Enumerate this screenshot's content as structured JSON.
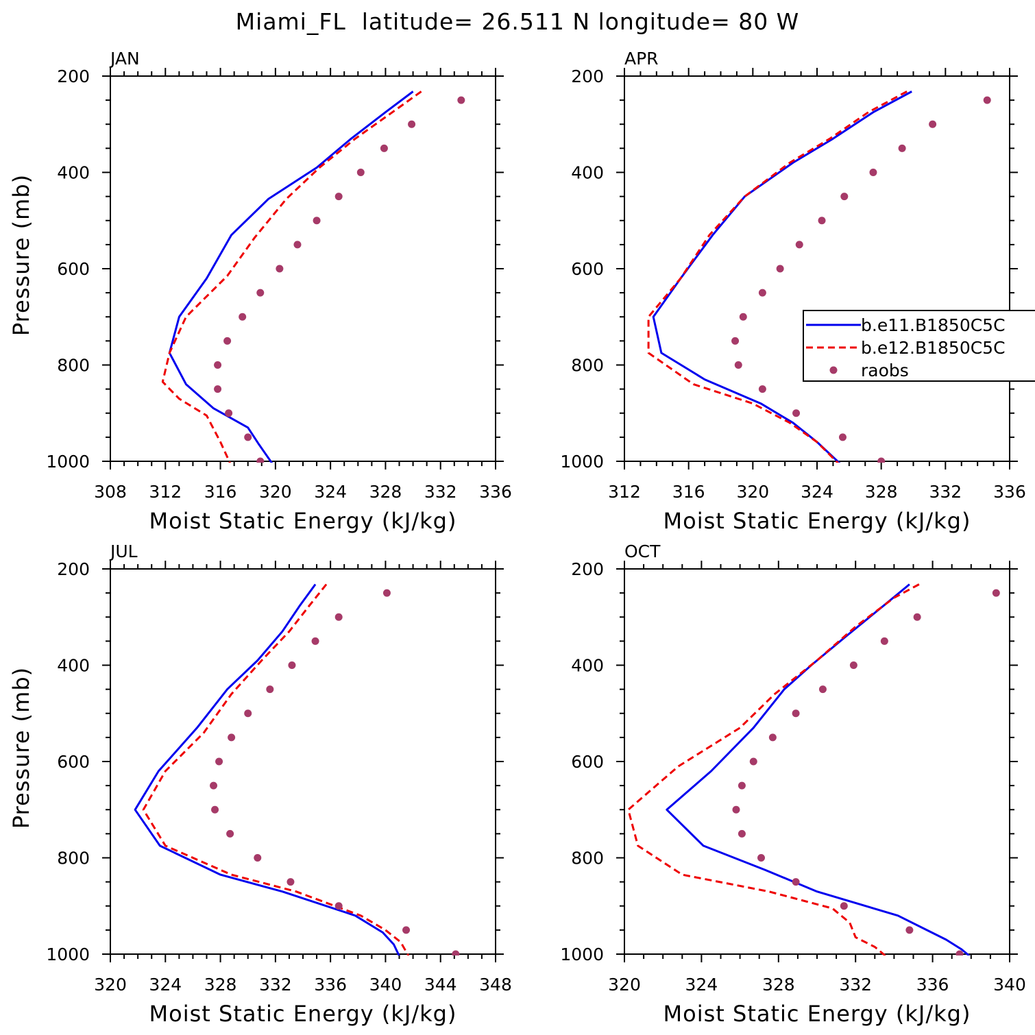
{
  "title": "Miami_FL  latitude= 26.511 N longitude= 80 W",
  "legend": {
    "entries": [
      {
        "label": "b.e11.B1850C5C",
        "style": "solid",
        "color": "#0000ee",
        "marker": "none"
      },
      {
        "label": "b.e12.B1850C5C",
        "style": "dashed",
        "color": "#ee0000",
        "marker": "none"
      },
      {
        "label": "raobs",
        "style": "none",
        "color": "#a63a68",
        "marker": "dot"
      }
    ]
  },
  "chart_data": [
    {
      "type": "line",
      "panel_label": "JAN",
      "xlabel": "Moist Static Energy (kJ/kg)",
      "ylabel": "Pressure (mb)",
      "xlim": [
        308,
        336
      ],
      "xticks": [
        308,
        312,
        316,
        320,
        324,
        328,
        332,
        336
      ],
      "ylim": [
        1000,
        200
      ],
      "yticks": [
        200,
        400,
        600,
        800,
        1000
      ],
      "series": [
        {
          "name": "b.e11.B1850C5C",
          "color": "#0000ee",
          "style": "solid",
          "x": [
            330.0,
            328.0,
            325.5,
            323.0,
            319.5,
            316.8,
            315.0,
            313.0,
            312.3,
            313.5,
            315.5,
            318.0,
            318.8,
            319.9
          ],
          "y": [
            232,
            275,
            330,
            390,
            455,
            530,
            620,
            700,
            775,
            840,
            890,
            930,
            965,
            1010
          ]
        },
        {
          "name": "b.e12.B1850C5C",
          "color": "#ee0000",
          "style": "dashed",
          "x": [
            330.6,
            328.5,
            325.8,
            323.2,
            320.8,
            318.5,
            316.5,
            313.5,
            312.3,
            311.8,
            313.0,
            315.0,
            316.0,
            316.8
          ],
          "y": [
            232,
            275,
            330,
            390,
            455,
            535,
            615,
            700,
            775,
            835,
            870,
            905,
            960,
            1010
          ]
        },
        {
          "name": "raobs",
          "color": "#a63a68",
          "style": "points",
          "x": [
            333.5,
            329.9,
            327.9,
            326.2,
            324.6,
            323.0,
            321.6,
            320.3,
            318.9,
            317.6,
            316.5,
            315.8,
            315.8,
            316.6,
            318.0,
            318.9
          ],
          "y": [
            250,
            300,
            350,
            400,
            450,
            500,
            550,
            600,
            650,
            700,
            750,
            800,
            850,
            900,
            950,
            1000
          ]
        }
      ]
    },
    {
      "type": "line",
      "panel_label": "APR",
      "xlabel": "Moist Static Energy (kJ/kg)",
      "ylabel": "",
      "xlim": [
        312,
        336
      ],
      "xticks": [
        312,
        316,
        320,
        324,
        328,
        332,
        336
      ],
      "ylim": [
        1000,
        200
      ],
      "yticks": [
        200,
        400,
        600,
        800,
        1000
      ],
      "series": [
        {
          "name": "b.e11.B1850C5C",
          "color": "#0000ee",
          "style": "solid",
          "x": [
            329.9,
            327.5,
            325.0,
            322.5,
            319.5,
            317.5,
            315.5,
            313.8,
            314.3,
            317.0,
            320.5,
            322.5,
            324.0,
            325.6
          ],
          "y": [
            232,
            275,
            330,
            380,
            450,
            530,
            620,
            700,
            775,
            830,
            880,
            920,
            960,
            1010
          ]
        },
        {
          "name": "b.e12.B1850C5C",
          "color": "#ee0000",
          "style": "dashed",
          "x": [
            329.6,
            327.2,
            324.8,
            322.3,
            319.5,
            317.3,
            315.5,
            313.5,
            313.5,
            316.3,
            320.0,
            322.3,
            324.0,
            325.5
          ],
          "y": [
            232,
            275,
            330,
            380,
            450,
            530,
            620,
            700,
            775,
            840,
            880,
            920,
            960,
            1010
          ]
        },
        {
          "name": "raobs",
          "color": "#a63a68",
          "style": "points",
          "x": [
            334.6,
            331.2,
            329.3,
            327.5,
            325.7,
            324.3,
            322.9,
            321.7,
            320.6,
            319.4,
            318.9,
            319.1,
            320.6,
            322.7,
            325.6,
            328.0
          ],
          "y": [
            250,
            300,
            350,
            400,
            450,
            500,
            550,
            600,
            650,
            700,
            750,
            800,
            850,
            900,
            950,
            1000
          ]
        }
      ]
    },
    {
      "type": "line",
      "panel_label": "JUL",
      "xlabel": "Moist Static Energy (kJ/kg)",
      "ylabel": "Pressure (mb)",
      "xlim": [
        320,
        348
      ],
      "xticks": [
        320,
        324,
        328,
        332,
        336,
        340,
        344,
        348
      ],
      "ylim": [
        1000,
        200
      ],
      "yticks": [
        200,
        400,
        600,
        800,
        1000
      ],
      "series": [
        {
          "name": "b.e11.B1850C5C",
          "color": "#0000ee",
          "style": "solid",
          "x": [
            334.9,
            333.8,
            332.5,
            330.7,
            328.5,
            326.3,
            323.5,
            321.8,
            323.6,
            328.0,
            332.5,
            337.8,
            339.8,
            340.6,
            341.1
          ],
          "y": [
            232,
            275,
            330,
            390,
            450,
            530,
            620,
            700,
            775,
            835,
            870,
            920,
            955,
            980,
            1010
          ]
        },
        {
          "name": "b.e12.B1850C5C",
          "color": "#ee0000",
          "style": "dashed",
          "x": [
            335.7,
            334.5,
            333.0,
            331.0,
            328.8,
            326.8,
            324.0,
            322.4,
            324.0,
            328.8,
            333.5,
            338.2,
            340.0,
            341.1,
            341.8
          ],
          "y": [
            232,
            275,
            330,
            390,
            460,
            540,
            620,
            700,
            775,
            835,
            870,
            920,
            950,
            975,
            1010
          ]
        },
        {
          "name": "raobs",
          "color": "#a63a68",
          "style": "points",
          "x": [
            340.1,
            336.6,
            334.9,
            333.2,
            331.6,
            330.0,
            328.8,
            327.9,
            327.5,
            327.6,
            328.7,
            330.7,
            333.1,
            336.6,
            341.5,
            345.1
          ],
          "y": [
            250,
            300,
            350,
            400,
            450,
            500,
            550,
            600,
            650,
            700,
            750,
            800,
            850,
            900,
            950,
            1000
          ]
        }
      ]
    },
    {
      "type": "line",
      "panel_label": "OCT",
      "xlabel": "Moist Static Energy (kJ/kg)",
      "ylabel": "",
      "xlim": [
        320,
        340
      ],
      "xticks": [
        320,
        324,
        328,
        332,
        336,
        340
      ],
      "ylim": [
        1000,
        200
      ],
      "yticks": [
        200,
        400,
        600,
        800,
        1000
      ],
      "series": [
        {
          "name": "b.e11.B1850C5C",
          "color": "#0000ee",
          "style": "solid",
          "x": [
            334.8,
            333.5,
            331.5,
            329.7,
            328.3,
            326.7,
            324.5,
            322.2,
            324.1,
            327.3,
            330.0,
            334.2,
            335.7,
            336.7,
            337.5,
            338.1
          ],
          "y": [
            232,
            275,
            340,
            400,
            450,
            530,
            620,
            700,
            775,
            825,
            870,
            920,
            950,
            970,
            990,
            1010
          ]
        },
        {
          "name": "b.e12.B1850C5C",
          "color": "#ee0000",
          "style": "dashed",
          "x": [
            335.3,
            334.0,
            332.0,
            330.0,
            327.8,
            326.0,
            322.8,
            320.2,
            320.7,
            323.0,
            327.5,
            330.8,
            331.7,
            332.0,
            333.0,
            333.6
          ],
          "y": [
            232,
            260,
            320,
            390,
            460,
            530,
            610,
            700,
            775,
            835,
            870,
            905,
            935,
            965,
            985,
            1005
          ]
        },
        {
          "name": "raobs",
          "color": "#a63a68",
          "style": "points",
          "x": [
            339.3,
            335.2,
            333.5,
            331.9,
            330.3,
            328.9,
            327.7,
            326.7,
            326.1,
            325.8,
            326.1,
            327.1,
            328.9,
            331.4,
            334.8,
            337.4
          ],
          "y": [
            250,
            300,
            350,
            400,
            450,
            500,
            550,
            600,
            650,
            700,
            750,
            800,
            850,
            900,
            950,
            1000
          ]
        }
      ]
    }
  ]
}
